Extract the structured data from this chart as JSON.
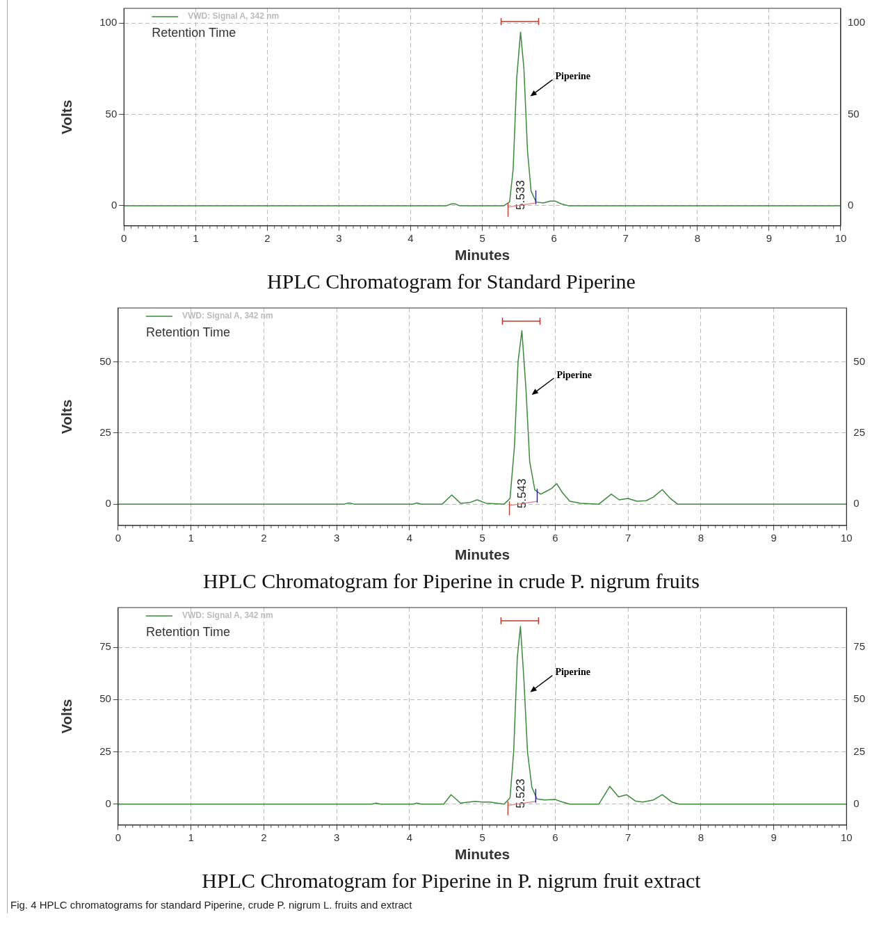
{
  "chart_data": [
    {
      "type": "line",
      "title": "HPLC Chromatogram for Standard Piperine",
      "xlabel": "Minutes",
      "ylabel": "Volts",
      "legend_title": "Retention Time",
      "legend": "top left",
      "grid": true,
      "marker": "none",
      "line_style": "solid",
      "xlim": [
        0,
        10
      ],
      "xticks": [
        0,
        1,
        2,
        3,
        4,
        5,
        6,
        7,
        8,
        9,
        10
      ],
      "ylim": [
        -11,
        108
      ],
      "yticks": [
        0,
        50,
        100
      ],
      "y2lim": [
        -11,
        108
      ],
      "y2ticks": [
        0,
        50,
        100
      ],
      "series": [
        {
          "name": "VWD: Signal A, 342 nm",
          "color": "#3a8a3a",
          "x": [
            0,
            4.5,
            4.57,
            4.62,
            4.68,
            5.3,
            5.38,
            5.43,
            5.48,
            5.533,
            5.58,
            5.63,
            5.68,
            5.75,
            5.85,
            5.95,
            6.02,
            6.1,
            6.2,
            10
          ],
          "values": [
            0,
            0,
            1,
            1,
            0,
            0,
            2,
            20,
            70,
            95,
            75,
            30,
            8,
            2,
            1.5,
            2.5,
            2.5,
            1,
            0,
            0
          ]
        }
      ],
      "annotations": [
        "Piperine",
        "5.533"
      ]
    },
    {
      "type": "line",
      "title": "HPLC Chromatogram for Piperine in crude P. nigrum fruits",
      "xlabel": "Minutes",
      "ylabel": "Volts",
      "legend_title": "Retention Time",
      "legend": "top left",
      "grid": true,
      "marker": "none",
      "line_style": "solid",
      "xlim": [
        0,
        10
      ],
      "xticks": [
        0,
        1,
        2,
        3,
        4,
        5,
        6,
        7,
        8,
        9,
        10
      ],
      "ylim": [
        -7.5,
        69
      ],
      "yticks": [
        0,
        25,
        50
      ],
      "y2lim": [
        -7.5,
        69
      ],
      "y2ticks": [
        0,
        25,
        50
      ],
      "series": [
        {
          "name": "VWD: Signal A, 342 nm",
          "color": "#3a8a3a",
          "x": [
            0,
            3.1,
            3.17,
            3.24,
            4.05,
            4.1,
            4.16,
            4.45,
            4.58,
            4.7,
            4.82,
            4.93,
            5.05,
            5.3,
            5.38,
            5.44,
            5.49,
            5.543,
            5.6,
            5.65,
            5.72,
            5.8,
            5.88,
            5.95,
            6.02,
            6.1,
            6.2,
            6.35,
            6.6,
            6.77,
            6.88,
            7.0,
            7.12,
            7.25,
            7.35,
            7.47,
            7.58,
            7.68,
            10
          ],
          "values": [
            0,
            0,
            0.4,
            0,
            0,
            0.4,
            0,
            0,
            3.2,
            0.3,
            0.5,
            1.5,
            0.3,
            0,
            2,
            20,
            50,
            61,
            40,
            15,
            5,
            3.5,
            4.5,
            5.5,
            7.2,
            4,
            1,
            0.3,
            0,
            3.5,
            1.5,
            2,
            1,
            1.2,
            2.5,
            5.1,
            2,
            0,
            0
          ]
        }
      ],
      "annotations": [
        "Piperine",
        "5.543"
      ]
    },
    {
      "type": "line",
      "title": "HPLC Chromatogram for Piperine in P. nigrum fruit extract",
      "xlabel": "Minutes",
      "ylabel": "Volts",
      "legend_title": "Retention Time",
      "legend": "top left",
      "grid": true,
      "marker": "none",
      "line_style": "solid",
      "xlim": [
        0,
        10
      ],
      "xticks": [
        0,
        1,
        2,
        3,
        4,
        5,
        6,
        7,
        8,
        9,
        10
      ],
      "ylim": [
        -10,
        94
      ],
      "yticks": [
        0,
        25,
        50,
        75
      ],
      "y2lim": [
        -10,
        94
      ],
      "y2ticks": [
        0,
        25,
        50,
        75
      ],
      "series": [
        {
          "name": "VWD: Signal A, 342 nm",
          "color": "#3a8a3a",
          "x": [
            0,
            3.48,
            3.54,
            3.6,
            4.05,
            4.1,
            4.16,
            4.47,
            4.57,
            4.7,
            4.9,
            5.0,
            5.1,
            5.3,
            5.38,
            5.43,
            5.48,
            5.523,
            5.57,
            5.62,
            5.68,
            5.75,
            5.85,
            6.0,
            6.1,
            6.2,
            6.6,
            6.75,
            6.87,
            6.98,
            7.1,
            7.2,
            7.35,
            7.47,
            7.6,
            7.7,
            10
          ],
          "values": [
            0,
            0,
            0.5,
            0,
            0,
            0.5,
            0,
            0,
            4.5,
            0.5,
            1.3,
            1,
            1,
            0,
            3,
            25,
            70,
            85,
            60,
            25,
            8,
            2.5,
            2,
            2.2,
            1,
            0,
            0,
            8.5,
            3.5,
            4.5,
            1.5,
            1,
            2,
            4.5,
            1,
            0,
            0
          ]
        }
      ],
      "annotations": [
        "Piperine",
        "5.523",
        "Fig. 4 HPLC chromatograms for standard Piperine, crude P. nigrum L. fruits and extract"
      ]
    }
  ]
}
